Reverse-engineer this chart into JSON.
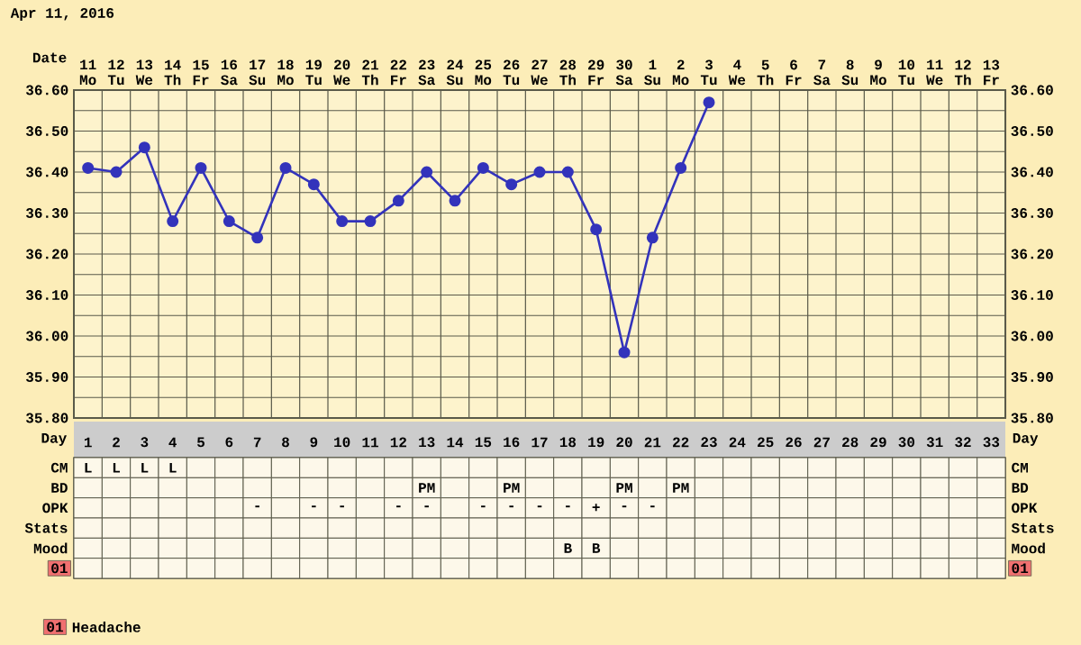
{
  "chart_data": [
    {
      "type": "line",
      "title": "Apr 11, 2016",
      "xlabel": "Date",
      "categories": [
        "11 Mo",
        "12 Tu",
        "13 We",
        "14 Th",
        "15 Fr",
        "16 Sa",
        "17 Su",
        "18 Mo",
        "19 Tu",
        "20 We",
        "21 Th",
        "22 Fr",
        "23 Sa",
        "24 Su",
        "25 Mo",
        "26 Tu",
        "27 We",
        "28 Th",
        "29 Fr",
        "30 Sa",
        "1 Su",
        "2 Mo",
        "3 Tu",
        "4 We",
        "5 Th",
        "6 Fr",
        "7 Sa",
        "8 Su",
        "9 Mo",
        "10 Tu",
        "11 We",
        "12 Th",
        "13 Fr"
      ],
      "series": [
        {
          "color": "#3333bb",
          "values": [
            36.41,
            36.4,
            36.46,
            36.28,
            36.41,
            36.28,
            36.24,
            36.41,
            36.37,
            36.28,
            36.28,
            36.33,
            36.4,
            36.33,
            36.41,
            36.37,
            36.4,
            36.4,
            36.26,
            35.96,
            36.24,
            36.41,
            36.57,
            null,
            null,
            null,
            null,
            null,
            null,
            null,
            null,
            null,
            null
          ]
        }
      ],
      "ylim": [
        35.8,
        36.6
      ],
      "yticks": [
        {
          "value": 35.8,
          "label": "35.80"
        },
        {
          "value": 35.9,
          "label": "35.90"
        },
        {
          "value": 36.0,
          "label": "36.00"
        },
        {
          "value": 36.1,
          "label": "36.10"
        },
        {
          "value": 36.2,
          "label": "36.20"
        },
        {
          "value": 36.3,
          "label": "36.30"
        },
        {
          "value": 36.4,
          "label": "36.40"
        },
        {
          "value": 36.5,
          "label": "36.50"
        },
        {
          "value": 36.6,
          "label": "36.60"
        }
      ],
      "y2lim": [
        35.8,
        36.6
      ],
      "y2ticks": [
        {
          "value": 35.8,
          "label": "35.80"
        },
        {
          "value": 35.9,
          "label": "35.90"
        },
        {
          "value": 36.0,
          "label": "36.00"
        },
        {
          "value": 36.1,
          "label": "36.10"
        },
        {
          "value": 36.2,
          "label": "36.20"
        },
        {
          "value": 36.3,
          "label": "36.30"
        },
        {
          "value": 36.4,
          "label": "36.40"
        },
        {
          "value": 36.5,
          "label": "36.50"
        },
        {
          "value": 36.6,
          "label": "36.60"
        }
      ],
      "grid": true,
      "marker": "circle",
      "line_style": "solid"
    },
    {
      "type": "heatmap",
      "xlabel": "Day",
      "categories": [
        "1",
        "2",
        "3",
        "4",
        "5",
        "6",
        "7",
        "8",
        "9",
        "10",
        "11",
        "12",
        "13",
        "14",
        "15",
        "16",
        "17",
        "18",
        "19",
        "20",
        "21",
        "22",
        "23",
        "24",
        "25",
        "26",
        "27",
        "28",
        "29",
        "30",
        "31",
        "32",
        "33"
      ],
      "y_categories": [
        "CM",
        "BD",
        "OPK",
        "Stats",
        "Mood",
        "01"
      ],
      "y2_categories": [
        "CM",
        "BD",
        "OPK",
        "Stats",
        "Mood",
        "01"
      ],
      "cells": [
        [
          null,
          null,
          null,
          null,
          null,
          null,
          null,
          null,
          null,
          null,
          null,
          null,
          null,
          null,
          null,
          null,
          null,
          null,
          null,
          null,
          null,
          null,
          null,
          null,
          null,
          null,
          null,
          null,
          null,
          null,
          null,
          null,
          null
        ],
        [
          null,
          null,
          null,
          null,
          null,
          null,
          null,
          null,
          null,
          null,
          null,
          null,
          null,
          null,
          null,
          null,
          null,
          null,
          null,
          null,
          null,
          null,
          null,
          null,
          null,
          null,
          null,
          null,
          null,
          null,
          null,
          null,
          null
        ],
        [
          null,
          null,
          null,
          null,
          null,
          null,
          null,
          null,
          null,
          null,
          null,
          null,
          null,
          null,
          null,
          null,
          null,
          null,
          null,
          null,
          null,
          null,
          null,
          null,
          null,
          null,
          null,
          null,
          null,
          null,
          null,
          null,
          null
        ],
        [
          null,
          null,
          null,
          null,
          null,
          null,
          null,
          null,
          null,
          null,
          null,
          null,
          null,
          null,
          null,
          null,
          null,
          null,
          null,
          null,
          null,
          null,
          null,
          null,
          null,
          null,
          null,
          null,
          null,
          null,
          null,
          null,
          null
        ],
        [
          null,
          null,
          null,
          null,
          null,
          null,
          null,
          null,
          null,
          null,
          null,
          null,
          null,
          null,
          null,
          null,
          null,
          null,
          null,
          null,
          null,
          null,
          null,
          null,
          null,
          null,
          null,
          null,
          null,
          null,
          null,
          null,
          null
        ],
        [
          null,
          null,
          null,
          null,
          null,
          null,
          null,
          null,
          null,
          null,
          null,
          null,
          null,
          null,
          null,
          null,
          null,
          null,
          null,
          null,
          null,
          null,
          null,
          null,
          null,
          null,
          null,
          null,
          null,
          null,
          null,
          null,
          null
        ]
      ],
      "cell_labels": [
        [
          "L",
          "L",
          "L",
          "L",
          null,
          null,
          null,
          null,
          null,
          null,
          null,
          null,
          null,
          null,
          null,
          null,
          null,
          null,
          null,
          null,
          null,
          null,
          null,
          null,
          null,
          null,
          null,
          null,
          null,
          null,
          null,
          null,
          null
        ],
        [
          null,
          null,
          null,
          null,
          null,
          null,
          null,
          null,
          null,
          null,
          null,
          null,
          "PM",
          null,
          null,
          "PM",
          null,
          null,
          null,
          "PM",
          null,
          "PM",
          null,
          null,
          null,
          null,
          null,
          null,
          null,
          null,
          null,
          null,
          null
        ],
        [
          null,
          null,
          null,
          null,
          null,
          null,
          "-",
          null,
          "-",
          "-",
          null,
          "-",
          "-",
          null,
          "-",
          "-",
          "-",
          "-",
          "+",
          "-",
          "-",
          null,
          null,
          null,
          null,
          null,
          null,
          null,
          null,
          null,
          null,
          null,
          null
        ],
        [
          null,
          null,
          null,
          null,
          null,
          null,
          null,
          null,
          null,
          null,
          null,
          null,
          null,
          null,
          null,
          null,
          null,
          null,
          null,
          null,
          null,
          null,
          null,
          null,
          null,
          null,
          null,
          null,
          null,
          null,
          null,
          null,
          null
        ],
        [
          null,
          null,
          null,
          null,
          null,
          null,
          null,
          null,
          null,
          null,
          null,
          null,
          null,
          null,
          null,
          null,
          null,
          "B",
          "B",
          null,
          null,
          null,
          null,
          null,
          null,
          null,
          null,
          null,
          null,
          null,
          null,
          null,
          null
        ],
        [
          null,
          null,
          null,
          null,
          null,
          null,
          null,
          null,
          null,
          null,
          null,
          null,
          null,
          null,
          null,
          null,
          null,
          null,
          null,
          null,
          null,
          null,
          null,
          null,
          null,
          null,
          null,
          null,
          null,
          null,
          null,
          null,
          null
        ]
      ],
      "annotations": [
        "Headache"
      ]
    }
  ]
}
